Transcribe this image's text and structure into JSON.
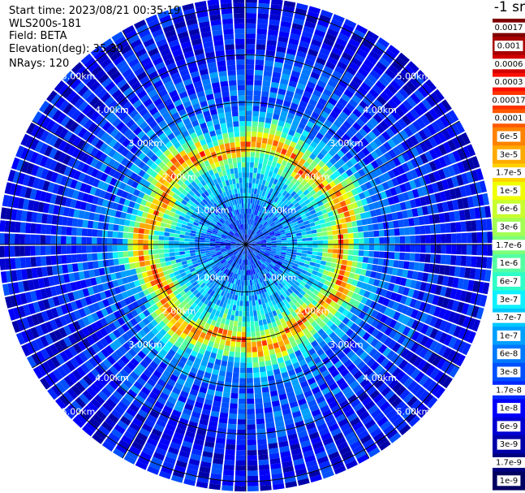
{
  "info": {
    "start_time": "Start time: 2023/08/21 00:35:19",
    "instrument": "WLS200s-181",
    "field": "Field: BETA",
    "elevation": "Elevation(deg): 35.30",
    "nrays": "NRays: 120"
  },
  "colorbar": {
    "unit": "-1 sr",
    "labels": [
      "0.0017",
      "0.001",
      "0.0006",
      "0.0003",
      "0.00017",
      "0.0001",
      "6e-5",
      "3e-5",
      "1.7e-5",
      "1e-5",
      "6e-6",
      "3e-6",
      "1.7e-6",
      "1e-6",
      "6e-7",
      "3e-7",
      "1.7e-7",
      "1e-7",
      "6e-8",
      "3e-8",
      "1.7e-8",
      "1e-8",
      "6e-9",
      "3e-9",
      "1.7e-9",
      "1e-9"
    ],
    "colors": [
      "#7f0000",
      "#a80000",
      "#d10000",
      "#fa0f00",
      "#ff3300",
      "#ff5a00",
      "#ff8200",
      "#ffaa00",
      "#ffd100",
      "#f0ff00",
      "#c8ff2e",
      "#a3ff54",
      "#7dff7a",
      "#54ffa3",
      "#2effc8",
      "#0ff0ff",
      "#00c8ff",
      "#00a0ff",
      "#0078ff",
      "#0050ff",
      "#0028ff",
      "#0000fa",
      "#0000d1",
      "#0000a8",
      "#00007f",
      "#000060"
    ]
  },
  "chart_data": {
    "type": "polar-ppi",
    "field": "BETA",
    "elevation_deg": 35.3,
    "n_rays": 120,
    "range_rings_km": [
      1.0,
      2.0,
      3.0,
      4.0,
      5.0
    ],
    "ring_labels": [
      "1.00km",
      "2.00km",
      "3.00km",
      "4.00km",
      "5.00km"
    ],
    "max_range_km": 5.0,
    "colorscale": "log10 attenuated backscatter (m-1 sr-1), 1e-9 to 1.7e-3",
    "radial_profile": {
      "range_km": [
        0.0,
        0.5,
        1.0,
        1.5,
        1.8,
        2.0,
        2.1,
        2.3,
        2.5,
        3.0,
        3.5,
        4.0,
        4.5,
        5.0
      ],
      "typical_beta": [
        3e-08,
        3e-08,
        1e-07,
        2e-07,
        2e-06,
        0.0001,
        2e-05,
        1e-06,
        1e-07,
        3e-08,
        3e-08,
        1e-08,
        1e-08,
        1e-08
      ]
    }
  }
}
